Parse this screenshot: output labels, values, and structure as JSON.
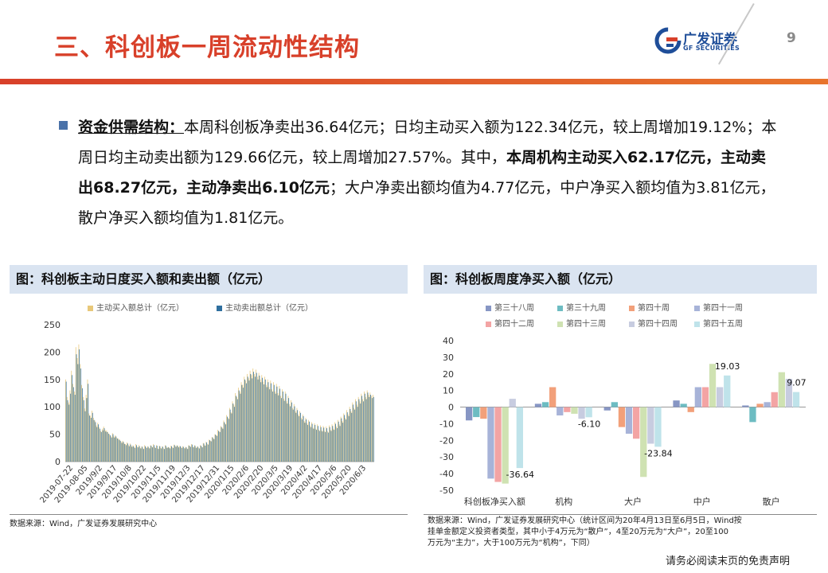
{
  "header": {
    "title": "三、科创板一周流动性结构",
    "logo_brand": "广发证券",
    "logo_sub": "GF SECURITIES",
    "page_number": "9"
  },
  "summary": {
    "label": "资金供需结构：",
    "t1": "本周科创板净卖出36.64亿元；日均主动买入额为122.34亿元，较上周增加19.12%；本周日均主动卖出额为129.66亿元，较上周增加27.57%。其中，",
    "b1": "本周机构主动买入62.17亿元，主动卖出68.27亿元，主动净卖出6.10亿元",
    "t2": "；大户净卖出额均值为4.77亿元，中户净买入额均值为3.81亿元，散户净买入额均值为1.81亿元。"
  },
  "left_panel": {
    "title": "图：科创板主动日度买入额和卖出额（亿元）",
    "source": "数据来源：Wind，广发证券发展研究中心"
  },
  "right_panel": {
    "title": "图：科创板周度净买入额（亿元）",
    "source_lines": [
      "数据来源：Wind，广发证券发展研究中心（统计区间为20年4月13日至6月5日，Wind按",
      "挂单金额定义投资者类型，其中小于4万元为“散户”，4至20万元为“大户”，20至100",
      "万元为“主力”，大于100万元为“机构”，下同）"
    ]
  },
  "disclaimer": "请务必阅读末页的免责声明",
  "colors": {
    "accent": "#d8402a",
    "brand_blue": "#1f4e99",
    "panel_bg": "#dae4f1",
    "buy": "#e8c87a",
    "sell": "#2f6f9f"
  },
  "chart_data": [
    {
      "type": "bar",
      "series": [
        {
          "name": "主动买入额总计（亿元）",
          "color": "#e8c87a",
          "values": [
            150,
            118,
            108,
            130,
            166,
            142,
            128,
            209,
            189,
            214,
            178,
            140,
            118,
            97,
            122,
            150,
            88,
            84,
            93,
            80,
            75,
            66,
            71,
            63,
            56,
            60,
            64,
            58,
            57,
            54,
            50,
            46,
            52,
            46,
            48,
            44,
            42,
            40,
            36,
            38,
            34,
            32,
            35,
            30,
            33,
            28,
            30,
            26,
            32,
            27,
            30,
            25,
            28,
            24,
            30,
            26,
            28,
            25,
            30,
            27,
            32,
            26,
            30,
            24,
            29,
            25,
            28,
            24,
            30,
            26,
            27,
            25,
            29,
            26,
            31,
            28,
            30,
            27,
            29,
            26,
            28,
            25,
            27,
            24,
            30,
            28,
            32,
            27,
            30,
            26,
            28,
            25,
            30,
            27,
            34,
            30,
            36,
            32,
            40,
            38,
            45,
            42,
            50,
            48,
            58,
            55,
            65,
            62,
            75,
            70,
            85,
            80,
            98,
            90,
            110,
            104,
            125,
            118,
            135,
            128,
            145,
            140,
            155,
            148,
            160,
            152,
            166,
            158,
            170,
            160,
            168,
            155,
            162,
            150,
            158,
            146,
            155,
            140,
            150,
            136,
            148,
            132,
            145,
            128,
            142,
            125,
            138,
            120,
            132,
            115,
            128,
            110,
            120,
            105,
            112,
            98,
            105,
            92,
            98,
            86,
            92,
            80,
            86,
            74,
            80,
            70,
            76,
            66,
            72,
            62,
            70,
            60,
            68,
            58,
            66,
            57,
            65,
            56,
            64,
            55,
            66,
            58,
            68,
            60,
            72,
            64,
            76,
            68,
            82,
            74,
            88,
            80,
            94,
            86,
            100,
            92,
            108,
            98,
            114,
            104,
            118,
            110,
            124,
            114,
            128,
            118,
            130,
            122,
            126,
            120,
            122
          ]
        },
        {
          "name": "主动卖出额总计（亿元）",
          "color": "#2f6f9f",
          "values": [
            146,
            112,
            104,
            124,
            158,
            136,
            122,
            196,
            178,
            205,
            170,
            134,
            112,
            92,
            116,
            142,
            84,
            80,
            89,
            76,
            72,
            63,
            68,
            60,
            54,
            57,
            61,
            55,
            54,
            51,
            48,
            44,
            50,
            44,
            46,
            42,
            40,
            38,
            34,
            36,
            32,
            30,
            33,
            28,
            31,
            27,
            28,
            25,
            30,
            26,
            28,
            24,
            27,
            23,
            28,
            25,
            27,
            24,
            29,
            26,
            30,
            25,
            29,
            23,
            28,
            24,
            27,
            23,
            29,
            25,
            26,
            24,
            28,
            25,
            30,
            27,
            29,
            26,
            28,
            25,
            27,
            24,
            26,
            23,
            29,
            27,
            31,
            26,
            29,
            25,
            27,
            24,
            29,
            26,
            33,
            29,
            35,
            31,
            39,
            37,
            44,
            41,
            49,
            47,
            56,
            54,
            63,
            60,
            72,
            68,
            82,
            78,
            95,
            88,
            106,
            100,
            120,
            114,
            130,
            124,
            140,
            135,
            150,
            143,
            155,
            148,
            160,
            152,
            164,
            155,
            162,
            150,
            157,
            145,
            153,
            141,
            150,
            136,
            145,
            132,
            143,
            128,
            140,
            124,
            137,
            121,
            133,
            116,
            128,
            111,
            124,
            106,
            116,
            101,
            108,
            95,
            101,
            89,
            94,
            83,
            89,
            77,
            83,
            71,
            77,
            67,
            73,
            63,
            69,
            60,
            67,
            58,
            65,
            56,
            63,
            55,
            62,
            54,
            61,
            53,
            63,
            56,
            65,
            58,
            69,
            61,
            73,
            65,
            79,
            71,
            85,
            77,
            90,
            83,
            96,
            89,
            104,
            95,
            110,
            100,
            114,
            106,
            120,
            110,
            124,
            114,
            126,
            118,
            122,
            116,
            118
          ]
        }
      ],
      "x_tick_labels": [
        "2019-07-22",
        "2019-08-05",
        "2019/9/2",
        "2019/9/17",
        "2019/10/8",
        "2019/10/22",
        "2019/11/5",
        "2019/11/19",
        "2019/12/3",
        "2019/12/17",
        "2019/12/31",
        "2020/1/15",
        "2020/2/6",
        "2020/2/20",
        "2020/3/5",
        "2020/3/19",
        "2020/4/2",
        "2020/4/17",
        "2020/5/6",
        "2020/5/20",
        "2020/6/3"
      ],
      "y_ticks": [
        "0",
        "50",
        "100",
        "150",
        "200",
        "250"
      ],
      "ylim": [
        0,
        250
      ],
      "legend_position": "top",
      "grid": false
    },
    {
      "type": "bar",
      "categories": [
        "科创板净买入额",
        "机构",
        "大户",
        "中户",
        "散户"
      ],
      "series": [
        {
          "name": "第三十八周",
          "color": "#8796c4",
          "values": [
            -8,
            2,
            -2,
            4,
            1
          ]
        },
        {
          "name": "第三十九周",
          "color": "#6dbcc2",
          "values": [
            -6,
            3,
            3,
            2,
            -9
          ]
        },
        {
          "name": "第四十周",
          "color": "#f2a07a",
          "values": [
            -7,
            12,
            -12,
            -3,
            2
          ]
        },
        {
          "name": "第四十一周",
          "color": "#a7b3d8",
          "values": [
            -43,
            -5,
            -16,
            12,
            3
          ]
        },
        {
          "name": "第四十二周",
          "color": "#f3a4a4",
          "values": [
            -45,
            -3,
            -19,
            12,
            9
          ]
        },
        {
          "name": "第四十三周",
          "color": "#cfe2b2",
          "values": [
            -46,
            -4,
            -42,
            26,
            21
          ]
        },
        {
          "name": "第四十四周",
          "color": "#c7cce0",
          "values": [
            5,
            -7,
            -22,
            12,
            17
          ]
        },
        {
          "name": "第四十五周",
          "color": "#bfe3ea",
          "values": [
            -36.64,
            -6.1,
            -23.84,
            19.03,
            9.07
          ]
        }
      ],
      "data_labels": [
        "-36.64",
        "-6.10",
        "-23.84",
        "19.03",
        "9.07"
      ],
      "y_ticks": [
        "40",
        "30",
        "20",
        "10",
        "0",
        "-10",
        "-20",
        "-30",
        "-40",
        "-50"
      ],
      "ylim": [
        -50,
        40
      ],
      "legend_position": "top",
      "grid": false
    }
  ]
}
